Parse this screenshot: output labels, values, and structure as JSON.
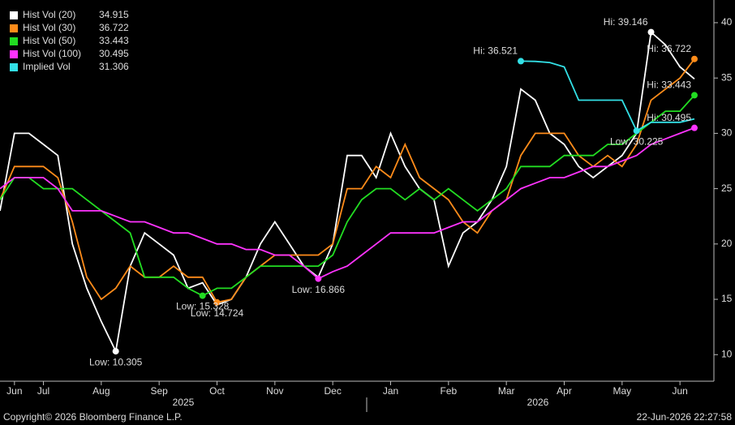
{
  "chart_data": {
    "type": "line",
    "categories": [
      null,
      "Jun",
      null,
      "Jul",
      null,
      null,
      null,
      "Aug",
      null,
      null,
      null,
      "Sep",
      null,
      null,
      null,
      "Oct",
      null,
      null,
      null,
      "Nov",
      null,
      null,
      null,
      "Dec",
      null,
      null,
      null,
      "Jan",
      null,
      null,
      null,
      "Feb",
      null,
      null,
      null,
      "Mar",
      null,
      null,
      null,
      "Apr",
      null,
      null,
      null,
      "May",
      null,
      null,
      null,
      "Jun",
      null
    ],
    "years": [
      "2025",
      "2026"
    ],
    "series": [
      {
        "name": "Hist Vol (20)",
        "color": "#ffffff",
        "values": [
          23,
          30,
          30,
          29,
          28,
          20,
          16,
          13,
          10.305,
          18,
          21,
          20,
          19,
          16,
          16.5,
          14.5,
          15,
          17,
          20,
          22,
          20,
          18,
          17,
          20,
          28,
          28,
          26,
          30,
          27,
          25,
          24,
          18,
          21,
          22,
          24,
          27,
          34,
          33,
          30,
          29,
          27,
          26,
          27,
          28,
          30,
          39.146,
          38,
          36,
          34.915
        ],
        "value_labels": [
          null,
          null,
          null,
          null,
          null,
          null,
          null,
          null,
          "Low: 10.305",
          null,
          null,
          null,
          null,
          null,
          null,
          null,
          null,
          null,
          null,
          null,
          null,
          null,
          null,
          null,
          null,
          null,
          null,
          null,
          null,
          null,
          null,
          null,
          null,
          null,
          null,
          null,
          null,
          null,
          null,
          null,
          null,
          null,
          null,
          null,
          null,
          "Hi: 39.146",
          null,
          null,
          null
        ]
      },
      {
        "name": "Hist Vol (30)",
        "color": "#ff8c1a",
        "values": [
          24,
          27,
          27,
          27,
          26,
          22,
          17,
          15,
          16,
          18,
          17,
          17,
          18,
          17,
          17,
          14.724,
          15,
          17,
          18,
          19,
          19,
          19,
          19,
          20,
          25,
          25,
          27,
          26,
          29,
          26,
          25,
          24,
          22,
          21,
          23,
          24,
          28,
          30,
          30,
          30,
          28,
          27,
          28,
          27,
          29,
          33,
          34,
          35,
          36.722
        ],
        "value_labels": [
          null,
          null,
          null,
          null,
          null,
          null,
          null,
          null,
          null,
          null,
          null,
          null,
          null,
          null,
          null,
          "Low: 14.724",
          null,
          null,
          null,
          null,
          null,
          null,
          null,
          null,
          null,
          null,
          null,
          null,
          null,
          null,
          null,
          null,
          null,
          null,
          null,
          null,
          null,
          null,
          null,
          null,
          null,
          null,
          null,
          null,
          null,
          null,
          null,
          null,
          "Hi: 36.722"
        ]
      },
      {
        "name": "Hist Vol (50)",
        "color": "#22dd22",
        "values": [
          24,
          26,
          26,
          25,
          25,
          25,
          24,
          23,
          22,
          21,
          17,
          17,
          17,
          16,
          15.328,
          16,
          16,
          17,
          18,
          18,
          18,
          18,
          18,
          19,
          22,
          24,
          25,
          25,
          24,
          25,
          24,
          25,
          24,
          23,
          24,
          25,
          27,
          27,
          27,
          28,
          28,
          28,
          29,
          29,
          30,
          31,
          32,
          32,
          33.443
        ],
        "value_labels": [
          null,
          null,
          null,
          null,
          null,
          null,
          null,
          null,
          null,
          null,
          null,
          null,
          null,
          null,
          "Low: 15.328",
          null,
          null,
          null,
          null,
          null,
          null,
          null,
          null,
          null,
          null,
          null,
          null,
          null,
          null,
          null,
          null,
          null,
          null,
          null,
          null,
          null,
          null,
          null,
          null,
          null,
          null,
          null,
          null,
          null,
          null,
          null,
          null,
          null,
          "Hi: 33.443"
        ]
      },
      {
        "name": "Hist Vol (100)",
        "color": "#ff33ff",
        "values": [
          25,
          26,
          26,
          26,
          25,
          23,
          23,
          23,
          22.5,
          22,
          22,
          21.5,
          21,
          21,
          20.5,
          20,
          20,
          19.5,
          19.5,
          19,
          19,
          18,
          16.866,
          17.5,
          18,
          19,
          20,
          21,
          21,
          21,
          21,
          21.5,
          22,
          22,
          23,
          24,
          25,
          25.5,
          26,
          26,
          26.5,
          27,
          27,
          27.5,
          28,
          29,
          29.5,
          30,
          30.495
        ],
        "value_labels": [
          null,
          null,
          null,
          null,
          null,
          null,
          null,
          null,
          null,
          null,
          null,
          null,
          null,
          null,
          null,
          null,
          null,
          null,
          null,
          null,
          null,
          null,
          "Low: 16.866",
          null,
          null,
          null,
          null,
          null,
          null,
          null,
          null,
          null,
          null,
          null,
          null,
          null,
          null,
          null,
          null,
          null,
          null,
          null,
          null,
          null,
          null,
          null,
          null,
          null,
          "Hi: 30.495"
        ]
      },
      {
        "name": "Implied Vol",
        "color": "#33e0e6",
        "values": [
          null,
          null,
          null,
          null,
          null,
          null,
          null,
          null,
          null,
          null,
          null,
          null,
          null,
          null,
          null,
          null,
          null,
          null,
          null,
          null,
          null,
          null,
          null,
          null,
          null,
          null,
          null,
          null,
          null,
          null,
          null,
          null,
          null,
          null,
          null,
          null,
          36.521,
          36.5,
          36.4,
          36,
          33,
          33,
          33,
          33,
          30.225,
          31,
          31,
          31,
          31.306
        ],
        "value_labels": [
          null,
          null,
          null,
          null,
          null,
          null,
          null,
          null,
          null,
          null,
          null,
          null,
          null,
          null,
          null,
          null,
          null,
          null,
          null,
          null,
          null,
          null,
          null,
          null,
          null,
          null,
          null,
          null,
          null,
          null,
          null,
          null,
          null,
          null,
          null,
          null,
          "Hi: 36.521",
          null,
          null,
          null,
          null,
          null,
          null,
          null,
          "Low: 30.225",
          null,
          null,
          null,
          null
        ]
      }
    ],
    "ylim": [
      7.6,
      42.05
    ],
    "yticks": [
      10,
      15,
      20,
      25,
      30,
      35,
      40
    ],
    "legend": "top-left",
    "footer_left": "Copyright© 2026 Bloomberg Finance L.P.",
    "footer_right": "22-Jun-2026 22:27:58"
  }
}
